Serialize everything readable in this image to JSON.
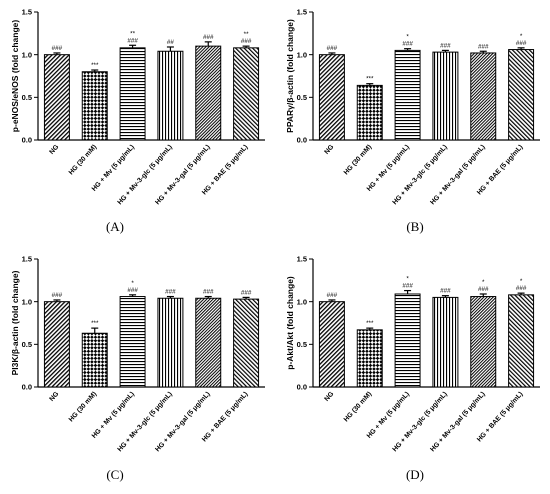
{
  "patterns": [
    "diag-down",
    "checker",
    "horiz",
    "vert",
    "diag-down-dense",
    "diag-up"
  ],
  "colors": {
    "ink": "#000000",
    "background": "#ffffff"
  },
  "chart_data": [
    {
      "type": "bar",
      "panel": "(A)",
      "ylabel": "p-eNOS/eNOS (fold change)",
      "ylim": [
        0.0,
        1.5
      ],
      "yticks": [
        "0.0",
        "0.5",
        "1.0",
        "1.5"
      ],
      "categories": [
        "NG",
        "HG (30 mM)",
        "HG + Mv (5 μg/mL)",
        "HG + Mv-3-glc (5 μg/mL)",
        "HG + Mv-3-gal (5 μg/mL)",
        "HG + BAE (5 μg/mL)"
      ],
      "values": [
        1.0,
        0.8,
        1.08,
        1.04,
        1.1,
        1.08
      ],
      "errors": [
        0.02,
        0.02,
        0.03,
        0.05,
        0.05,
        0.02
      ],
      "annotations": [
        [
          "###"
        ],
        [
          "***"
        ],
        [
          "**",
          "###"
        ],
        [
          "##"
        ],
        [
          "###"
        ],
        [
          "**",
          "###"
        ]
      ]
    },
    {
      "type": "bar",
      "panel": "(B)",
      "ylabel": "PPARγ/β-actin (fold change)",
      "ylim": [
        0.0,
        1.5
      ],
      "yticks": [
        "0.0",
        "0.5",
        "1.0",
        "1.5"
      ],
      "categories": [
        "NG",
        "HG (30 mM)",
        "HG + Mv (5 μg/mL)",
        "HG + Mv-3-glc (5 μg/mL)",
        "HG + Mv-3-gal (5 μg/mL)",
        "HG + BAE (5 μg/mL)"
      ],
      "values": [
        1.0,
        0.64,
        1.05,
        1.03,
        1.02,
        1.06
      ],
      "errors": [
        0.02,
        0.02,
        0.02,
        0.02,
        0.02,
        0.02
      ],
      "annotations": [
        [
          "###"
        ],
        [
          "***"
        ],
        [
          "*",
          "###"
        ],
        [
          "###"
        ],
        [
          "###"
        ],
        [
          "*",
          "###"
        ]
      ]
    },
    {
      "type": "bar",
      "panel": "(C)",
      "ylabel": "PI3K/β-actin (fold change)",
      "ylim": [
        0.0,
        1.5
      ],
      "yticks": [
        "0.0",
        "0.5",
        "1.0",
        "1.5"
      ],
      "categories": [
        "NG",
        "HG (30 mM)",
        "HG + Mv (5 μg/mL)",
        "HG + Mv-3-glc (5 μg/mL)",
        "HG + Mv-3-gal (5 μg/mL)",
        "HG + BAE (5 μg/mL)"
      ],
      "values": [
        1.0,
        0.63,
        1.06,
        1.04,
        1.04,
        1.03
      ],
      "errors": [
        0.02,
        0.06,
        0.02,
        0.02,
        0.02,
        0.02
      ],
      "annotations": [
        [
          "###"
        ],
        [
          "***"
        ],
        [
          "*",
          "###"
        ],
        [
          "###"
        ],
        [
          "###"
        ],
        [
          "###"
        ]
      ]
    },
    {
      "type": "bar",
      "panel": "(D)",
      "ylabel": "p-Akt/Akt (fold change)",
      "ylim": [
        0.0,
        1.5
      ],
      "yticks": [
        "0.0",
        "0.5",
        "1.0",
        "1.5"
      ],
      "categories": [
        "NG",
        "HG (30 mM)",
        "HG + Mv (5 μg/mL)",
        "HG + Mv-3-glc (5 μg/mL)",
        "HG + Mv-3-gal (5 μg/mL)",
        "HG + BAE (5 μg/mL)"
      ],
      "values": [
        1.0,
        0.67,
        1.09,
        1.05,
        1.06,
        1.08
      ],
      "errors": [
        0.02,
        0.02,
        0.04,
        0.02,
        0.03,
        0.02
      ],
      "annotations": [
        [
          "###"
        ],
        [
          "***"
        ],
        [
          "*",
          "###"
        ],
        [
          "###"
        ],
        [
          "*",
          "###"
        ],
        [
          "*",
          "###"
        ]
      ]
    }
  ]
}
